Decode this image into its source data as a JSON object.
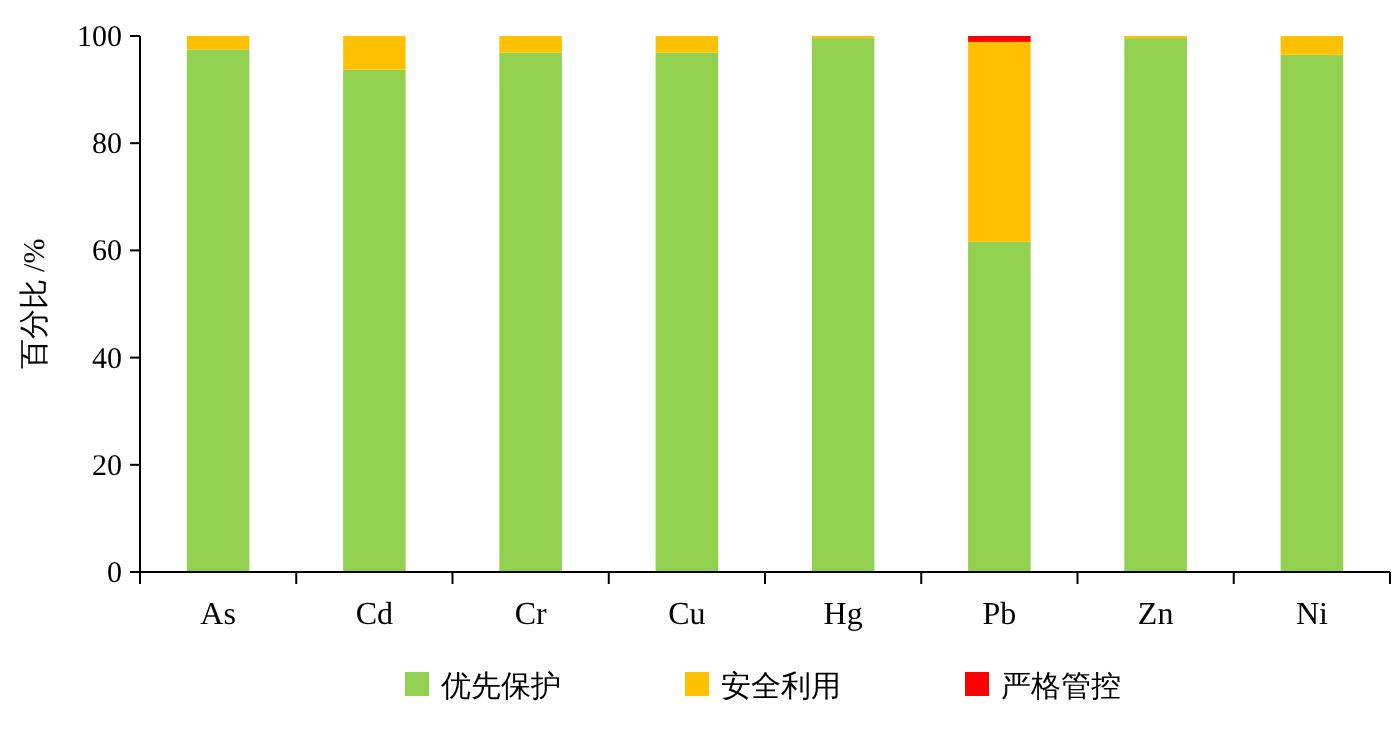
{
  "chart_data": {
    "type": "bar",
    "stacked": true,
    "ylabel": "百分比 /%",
    "categories": [
      "As",
      "Cd",
      "Cr",
      "Cu",
      "Hg",
      "Pb",
      "Zn",
      "Ni"
    ],
    "series": [
      {
        "name": "优先保护",
        "color": "#92d050",
        "values": [
          97.5,
          93.7,
          96.9,
          96.9,
          99.6,
          61.6,
          99.6,
          96.5
        ]
      },
      {
        "name": "安全利用",
        "color": "#ffc000",
        "values": [
          2.5,
          6.3,
          3.1,
          3.1,
          0.4,
          37.3,
          0.4,
          3.5
        ]
      },
      {
        "name": "严格管控",
        "color": "#ff0000",
        "values": [
          0,
          0,
          0,
          0,
          0,
          1.1,
          0,
          0
        ]
      }
    ],
    "ylim": [
      0,
      100
    ],
    "yticks": [
      0,
      20,
      40,
      60,
      80,
      100
    ],
    "grid": false,
    "legend": "bottom"
  }
}
